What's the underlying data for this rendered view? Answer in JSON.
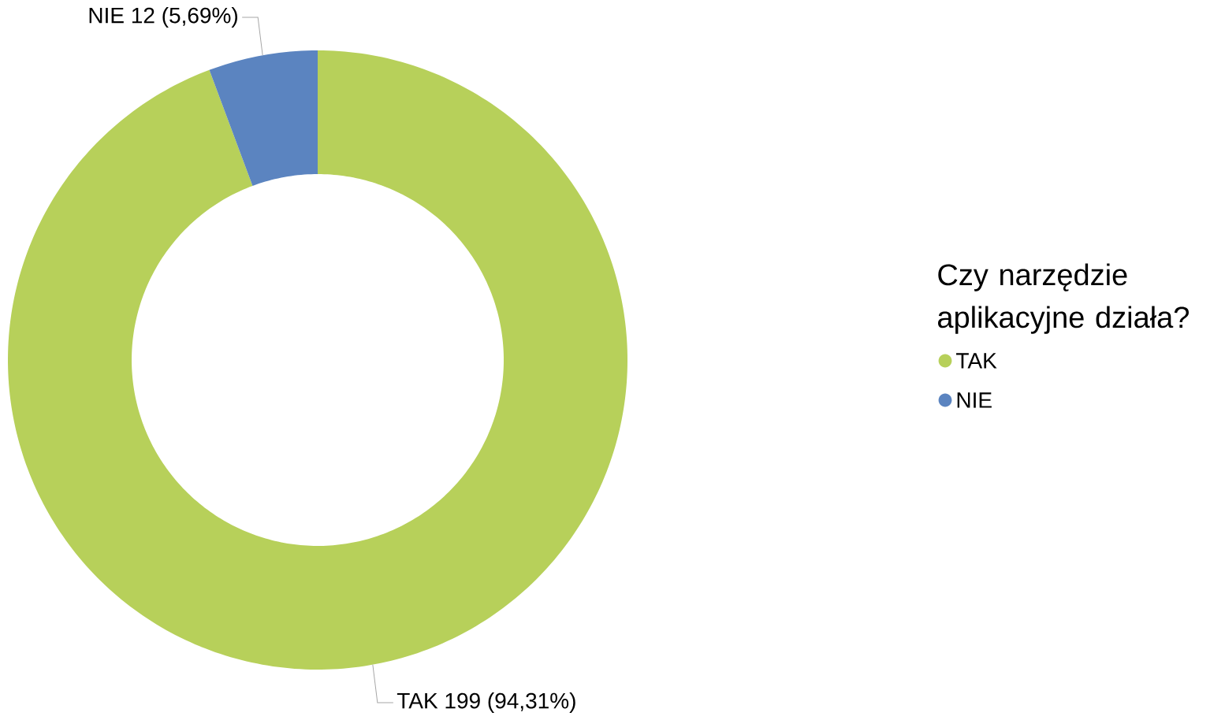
{
  "chart_data": {
    "type": "donut",
    "legend_title": "Czy narzędzie aplikacyjne działa?",
    "categories": [
      "TAK",
      "NIE"
    ],
    "values": [
      199,
      12
    ],
    "colors": [
      "#b7d05a",
      "#5b84c0"
    ],
    "value_labels": [
      "199 (94,31%)",
      "12 (5,69%)"
    ],
    "legend": "right"
  }
}
